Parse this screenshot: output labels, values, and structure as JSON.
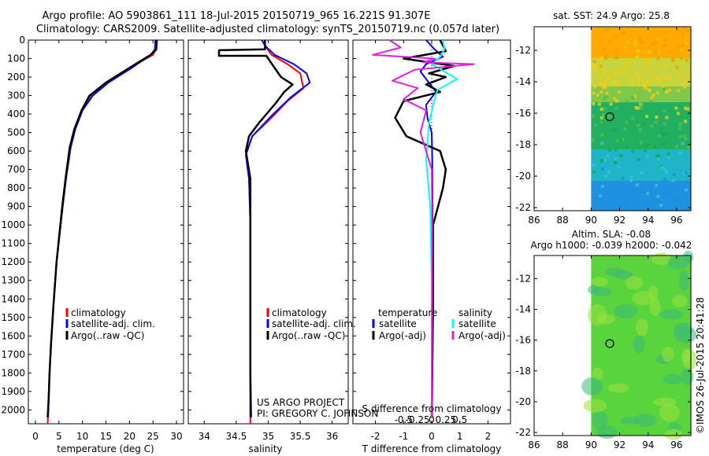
{
  "title": {
    "line1": "Argo profile: AO 5903861_111 18-Jul-2015 20150719_965 16.221S 91.307E",
    "line2": "Climatology: CARS2009. Satellite-adjusted climatology: synTS_20150719.nc (0.057d later)"
  },
  "colors": {
    "clim": "#ff0000",
    "sat": "#0000ff",
    "argo": "#000000",
    "cyan": "#00ffff",
    "magenta": "#e020e0"
  },
  "chart_data": [
    {
      "type": "line",
      "name": "temperature-profile",
      "xlabel": "temperature (deg C)",
      "ylabel": "",
      "xlim": [
        -1.5,
        31.5
      ],
      "ylim": [
        0,
        2075
      ],
      "xticks": [
        "0",
        "5",
        "10",
        "15",
        "20",
        "25",
        "30"
      ],
      "xtick_values": [
        0,
        5,
        10,
        15,
        20,
        25,
        30
      ],
      "yticks": [
        "0",
        "100",
        "200",
        "300",
        "400",
        "500",
        "600",
        "700",
        "800",
        "900",
        "1000",
        "1100",
        "1200",
        "1300",
        "1400",
        "1500",
        "1600",
        "1700",
        "1800",
        "1900",
        "2000"
      ],
      "ytick_values": [
        0,
        100,
        200,
        300,
        400,
        500,
        600,
        700,
        800,
        900,
        1000,
        1100,
        1200,
        1300,
        1400,
        1500,
        1600,
        1700,
        1800,
        1900,
        2000
      ],
      "legend": [
        "climatology",
        "satellite-adj. clim.",
        "Argo(..raw -QC)"
      ],
      "series": [
        {
          "name": "climatology",
          "color": "clim",
          "x": [
            25.8,
            25.6,
            25,
            20,
            15,
            12,
            10,
            8.5,
            7.5,
            6.5,
            5.8,
            4.5,
            3.8,
            3.3,
            3,
            2.8,
            2.6
          ],
          "y": [
            0,
            50,
            80,
            150,
            230,
            300,
            380,
            480,
            580,
            750,
            900,
            1200,
            1450,
            1650,
            1800,
            1950,
            2075
          ]
        },
        {
          "name": "satellite-adj. clim.",
          "color": "sat",
          "x": [
            25.5,
            25.4,
            24.5,
            20.5,
            15.5,
            12.2,
            10,
            8.5,
            7.5,
            6.5,
            5.8,
            4.5,
            3.8,
            3.3,
            3,
            2.8,
            2.7
          ],
          "y": [
            0,
            50,
            80,
            150,
            230,
            300,
            380,
            480,
            580,
            750,
            900,
            1200,
            1450,
            1650,
            1800,
            1950,
            2040
          ]
        },
        {
          "name": "Argo(..raw -QC)",
          "color": "argo",
          "x": [
            25.8,
            25.7,
            24.5,
            20,
            15,
            11.5,
            9.8,
            8.3,
            7.3,
            6.4,
            5.7,
            4.5,
            3.8,
            3.3,
            3,
            2.8,
            2.6
          ],
          "y": [
            0,
            50,
            80,
            150,
            230,
            300,
            380,
            480,
            580,
            750,
            900,
            1200,
            1450,
            1650,
            1800,
            1950,
            2040
          ]
        }
      ]
    },
    {
      "type": "line",
      "name": "salinity-profile",
      "xlabel": "salinity",
      "xlim": [
        33.75,
        36.25
      ],
      "ylim": [
        0,
        2075
      ],
      "xticks": [
        "34",
        "34.5",
        "35",
        "35.5",
        "36"
      ],
      "xtick_values": [
        34,
        34.5,
        35,
        35.5,
        36
      ],
      "legend": [
        "climatology",
        "satellite-adj. clim.",
        "Argo(..raw -QC)"
      ],
      "annotation": [
        "US ARGO PROJECT",
        "PI: GREGORY C. JOHNSON"
      ],
      "series": [
        {
          "name": "climatology",
          "color": "clim",
          "x": [
            34.95,
            34.95,
            35.05,
            35.3,
            35.5,
            35.55,
            35.3,
            35.05,
            34.75,
            34.65,
            34.7,
            34.72,
            34.72,
            34.72,
            34.72,
            34.72
          ],
          "y": [
            0,
            30,
            80,
            130,
            180,
            260,
            330,
            420,
            520,
            620,
            750,
            1000,
            1400,
            1800,
            2000,
            2075
          ]
        },
        {
          "name": "satellite-adj. clim.",
          "color": "sat",
          "x": [
            34.9,
            34.95,
            35.1,
            35.4,
            35.6,
            35.65,
            35.35,
            35.05,
            34.75,
            34.65,
            34.7,
            34.72,
            34.72,
            34.72,
            34.72,
            34.72
          ],
          "y": [
            0,
            30,
            80,
            130,
            180,
            230,
            310,
            410,
            520,
            620,
            750,
            1000,
            1400,
            1800,
            2000,
            2040
          ]
        },
        {
          "name": "Argo(..raw -QC)",
          "color": "argo",
          "x": [
            34.95,
            34.95,
            34.23,
            34.23,
            34.97,
            35.0,
            35.1,
            35.2,
            35.38,
            35.25,
            35.12,
            34.85,
            34.7,
            34.65,
            34.72,
            34.72,
            34.72,
            34.72,
            34.73
          ],
          "y": [
            0,
            50,
            55,
            85,
            85,
            100,
            150,
            200,
            240,
            280,
            340,
            450,
            520,
            600,
            750,
            1000,
            1400,
            1800,
            2040
          ]
        }
      ]
    },
    {
      "type": "line",
      "name": "difference-profile",
      "xlabel": "T difference from climatology",
      "xlabel_top": "S difference from climatology",
      "xlim": [
        -2.8,
        2.8
      ],
      "ylim": [
        0,
        2075
      ],
      "xticks": [
        "-2",
        "-1",
        "0",
        "1",
        "2"
      ],
      "xtick_values": [
        -2,
        -1,
        0,
        1,
        2
      ],
      "sticks": [
        "-0.5",
        "-0.25",
        "0",
        "0.25",
        "0.5"
      ],
      "stick_values": [
        -0.5,
        -0.25,
        0,
        0.25,
        0.5
      ],
      "legend_headers": [
        "temperature",
        "salinity"
      ],
      "legend": [
        "satellite",
        "Argo(-adj)",
        "satellite",
        "Argo(-adj)"
      ],
      "series": [
        {
          "name": "T satellite",
          "color": "sat",
          "x": [
            -0.2,
            0.1,
            0.4,
            -0.2,
            -0.4,
            -0.1,
            0.15,
            -0.2,
            -0.15,
            0,
            0.02,
            0.03,
            0.03,
            0.02,
            0,
            0.02
          ],
          "y": [
            0,
            50,
            90,
            130,
            170,
            230,
            280,
            350,
            420,
            500,
            650,
            900,
            1300,
            1700,
            2000,
            2040
          ]
        },
        {
          "name": "T Argo(-adj)",
          "color": "argo",
          "x": [
            0.3,
            0.5,
            -1.0,
            0.8,
            -0.1,
            0.5,
            -0.2,
            0.3,
            -1.0,
            -1.3,
            -0.9,
            0.3,
            0.5,
            0.4,
            0.05,
            0.05,
            0.02,
            0
          ],
          "y": [
            0,
            60,
            100,
            140,
            180,
            200,
            240,
            280,
            330,
            420,
            520,
            600,
            700,
            800,
            1000,
            1400,
            1800,
            2040
          ]
        },
        {
          "name": "S satellite",
          "color": "cyan",
          "x": [
            0.4,
            0.45,
            0.3,
            0.0,
            0.9,
            0.2,
            0.05,
            -0.1,
            -0.2,
            -0.05,
            0,
            0,
            0,
            0
          ],
          "y": [
            0,
            50,
            90,
            130,
            210,
            270,
            350,
            450,
            650,
            900,
            1300,
            1600,
            1900,
            2040
          ]
        },
        {
          "name": "S Argo(-adj)",
          "color": "magenta",
          "x": [
            -1.5,
            -1.1,
            -2.1,
            0.1,
            -0.3,
            1.5,
            -0.6,
            -1.4,
            -0.5,
            -1.0,
            -0.2,
            -0.4,
            0.0,
            0.02,
            0
          ],
          "y": [
            0,
            40,
            80,
            100,
            120,
            130,
            160,
            220,
            260,
            320,
            380,
            500,
            700,
            1000,
            2040
          ]
        }
      ]
    },
    {
      "type": "heatmap",
      "name": "sst-map",
      "title": "sat. SST: 24.9 Argo: 25.8",
      "xlim": [
        86,
        97
      ],
      "ylim": [
        -22.2,
        -10.5
      ],
      "xticks": [
        "86",
        "88",
        "90",
        "92",
        "94",
        "96"
      ],
      "xtick_values": [
        86,
        88,
        90,
        92,
        94,
        96
      ],
      "yticks": [
        "-12",
        "-14",
        "-16",
        "-18",
        "-20",
        "-22"
      ],
      "ytick_values": [
        -12,
        -14,
        -16,
        -18,
        -20,
        -22
      ],
      "data_lon_range": [
        90,
        97
      ],
      "marker": {
        "lon": 91.307,
        "lat": -16.221
      },
      "bands": [
        {
          "lat_from": -10.5,
          "lat_to": -12.5,
          "color": "#ffaa00"
        },
        {
          "lat_from": -12.5,
          "lat_to": -14.3,
          "color": "#c8d43c"
        },
        {
          "lat_from": -14.3,
          "lat_to": -15.3,
          "color": "#7fc84a"
        },
        {
          "lat_from": -15.3,
          "lat_to": -18.3,
          "color": "#22b060"
        },
        {
          "lat_from": -18.3,
          "lat_to": -20.3,
          "color": "#20b4c8"
        },
        {
          "lat_from": -20.3,
          "lat_to": -22.2,
          "color": "#2090e0"
        }
      ]
    },
    {
      "type": "heatmap",
      "name": "sla-map",
      "title_line1": "Altim. SLA: -0.08",
      "title_line2": "Argo h1000: -0.039 h2000: -0.042",
      "xlim": [
        86,
        97
      ],
      "ylim": [
        -22.2,
        -10.5
      ],
      "xticks": [
        "86",
        "88",
        "90",
        "92",
        "94",
        "96"
      ],
      "xtick_values": [
        86,
        88,
        90,
        92,
        94,
        96
      ],
      "yticks": [
        "-12",
        "-14",
        "-16",
        "-18",
        "-20",
        "-22"
      ],
      "ytick_values": [
        -12,
        -14,
        -16,
        -18,
        -20,
        -22
      ],
      "data_lon_range": [
        90,
        97
      ],
      "marker": {
        "lon": 91.307,
        "lat": -16.221
      },
      "base_color": "#5ad43c"
    }
  ],
  "credit": "©IMOS 26-Jul-2015 20:41:28"
}
